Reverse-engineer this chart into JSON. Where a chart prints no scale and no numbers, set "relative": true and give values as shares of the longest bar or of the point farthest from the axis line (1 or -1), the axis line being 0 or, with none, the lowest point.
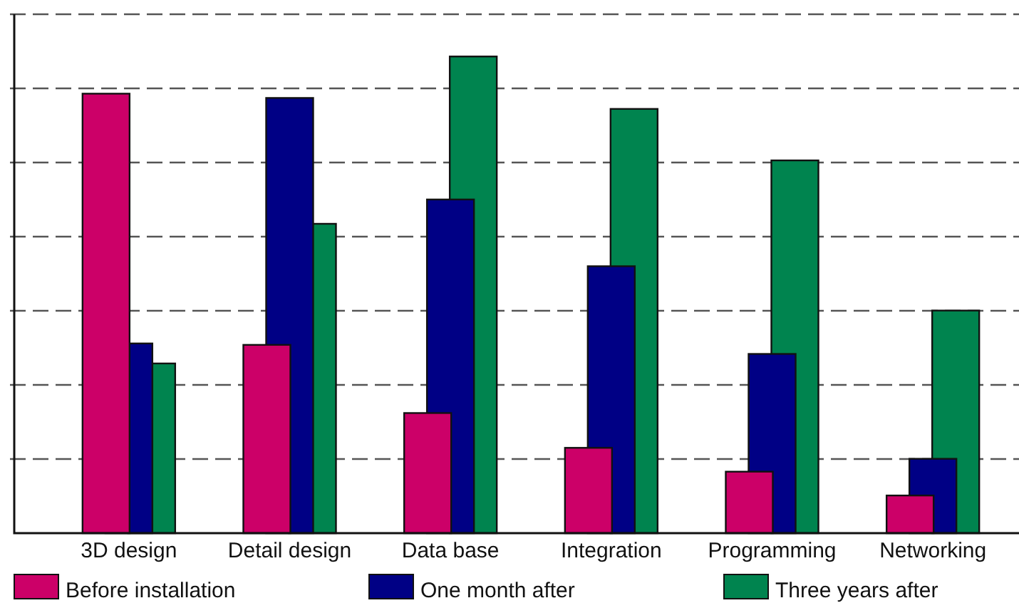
{
  "chart_data": {
    "type": "bar",
    "relative": true,
    "grid": true,
    "legend": "bottom",
    "categories": [
      "3D design",
      "Detail design",
      "Data base",
      "Integration",
      "Programming",
      "Networking"
    ],
    "series": [
      {
        "name": "Before installation",
        "color": "#cc0068",
        "values": [
          0.922,
          0.395,
          0.252,
          0.179,
          0.129,
          0.079
        ]
      },
      {
        "name": "One month after",
        "color": "#000085",
        "values": [
          0.398,
          0.913,
          0.7,
          0.56,
          0.376,
          0.156
        ]
      },
      {
        "name": "Three years after",
        "color": "#00844f",
        "values": [
          0.356,
          0.649,
          1,
          0.89,
          0.782,
          0.467
        ]
      }
    ]
  }
}
